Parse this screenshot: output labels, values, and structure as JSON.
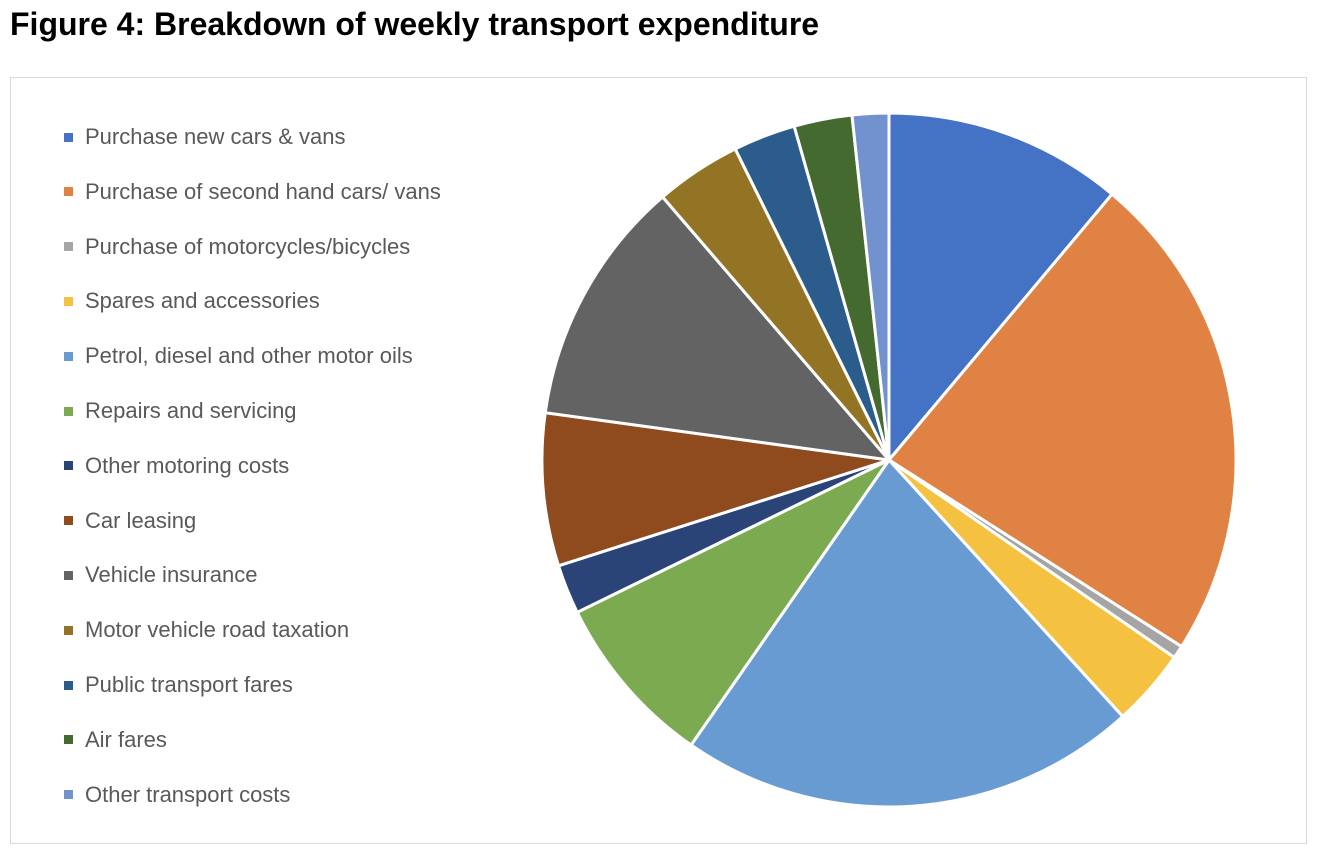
{
  "title": "Figure 4: Breakdown of weekly transport expenditure",
  "chart_data": {
    "type": "pie",
    "title": "Figure 4: Breakdown of weekly transport expenditure",
    "unit": "percent (estimated from slice angles)",
    "legend_position": "left",
    "start": "top, clockwise",
    "slices": [
      {
        "label": "Purchase new cars & vans",
        "value": 11.1,
        "color": "#4472C4"
      },
      {
        "label": "Purchase of second hand cars/ vans",
        "value": 22.9,
        "color": "#E08243"
      },
      {
        "label": "Purchase of motorcycles/bicycles",
        "value": 0.6,
        "color": "#A5A5A5"
      },
      {
        "label": "Spares and accessories",
        "value": 3.6,
        "color": "#F4C141"
      },
      {
        "label": "Petrol, diesel and other motor oils",
        "value": 21.4,
        "color": "#699BD3"
      },
      {
        "label": "Repairs and servicing",
        "value": 8.1,
        "color": "#7BAA50"
      },
      {
        "label": "Other motoring costs",
        "value": 2.3,
        "color": "#2A4478"
      },
      {
        "label": "Car leasing",
        "value": 7.1,
        "color": "#8F4A1E"
      },
      {
        "label": "Vehicle insurance",
        "value": 11.5,
        "color": "#636363"
      },
      {
        "label": "Motor vehicle road taxation",
        "value": 4.0,
        "color": "#937425"
      },
      {
        "label": "Public transport fares",
        "value": 2.9,
        "color": "#2B5C8C"
      },
      {
        "label": "Air fares",
        "value": 2.7,
        "color": "#456A2F"
      },
      {
        "label": "Other transport costs",
        "value": 1.7,
        "color": "#7291CF"
      }
    ]
  }
}
